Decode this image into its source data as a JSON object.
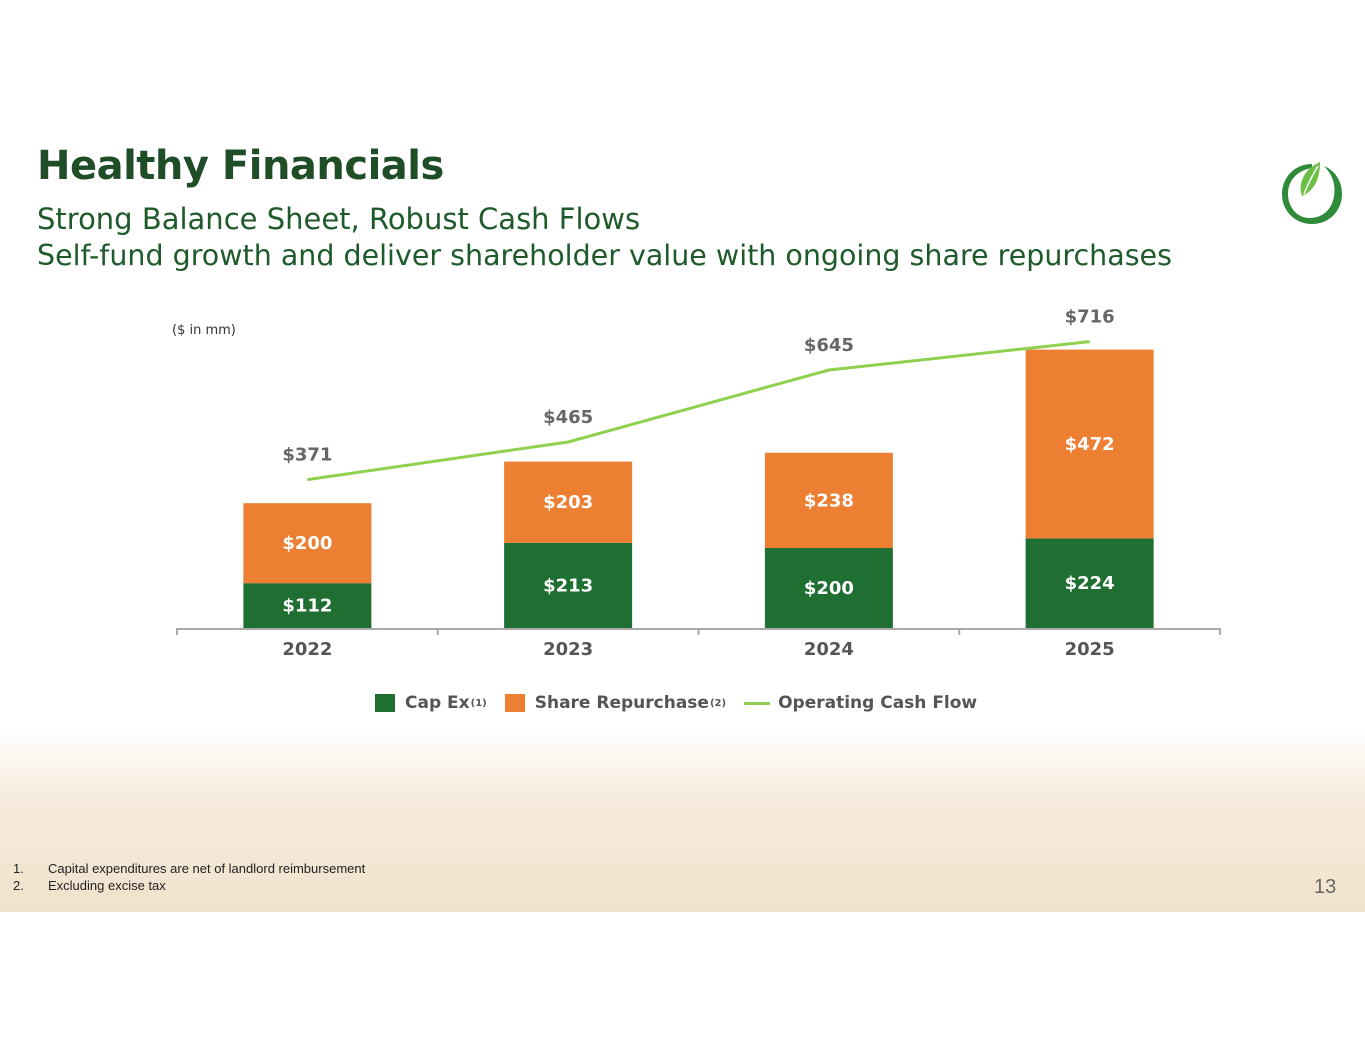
{
  "header": {
    "title": "Healthy Financials",
    "subtitle_line1": "Strong Balance Sheet, Robust Cash Flows",
    "subtitle_line2": "Self-fund growth and deliver shareholder value with ongoing share repurchases"
  },
  "units_label": "($ in mm)",
  "chart_data": {
    "type": "bar",
    "stacked": true,
    "categories": [
      "2022",
      "2023",
      "2024",
      "2025"
    ],
    "series": [
      {
        "name": "Cap Ex",
        "footnote": "(1)",
        "kind": "bar",
        "color": "#1f6e32",
        "values": [
          112,
          213,
          200,
          224
        ],
        "labels": [
          "$112",
          "$213",
          "$200",
          "$224"
        ]
      },
      {
        "name": "Share Repurchase",
        "footnote": "(2)",
        "kind": "bar",
        "color": "#ec7f32",
        "values": [
          200,
          203,
          238,
          472
        ],
        "labels": [
          "$200",
          "$203",
          "$238",
          "$472"
        ]
      },
      {
        "name": "Operating Cash Flow",
        "footnote": "",
        "kind": "line",
        "color": "#8fd14f",
        "values": [
          371,
          465,
          645,
          716
        ],
        "labels": [
          "$371",
          "$465",
          "$645",
          "$716"
        ]
      }
    ],
    "ylim": [
      0,
      800
    ],
    "legend_position": "bottom",
    "xlabel": "",
    "ylabel": ""
  },
  "footnotes": [
    {
      "num": "1.",
      "text": "Capital expenditures are net of landlord reimbursement"
    },
    {
      "num": "2.",
      "text": "Excluding excise tax"
    }
  ],
  "page_number": "13"
}
